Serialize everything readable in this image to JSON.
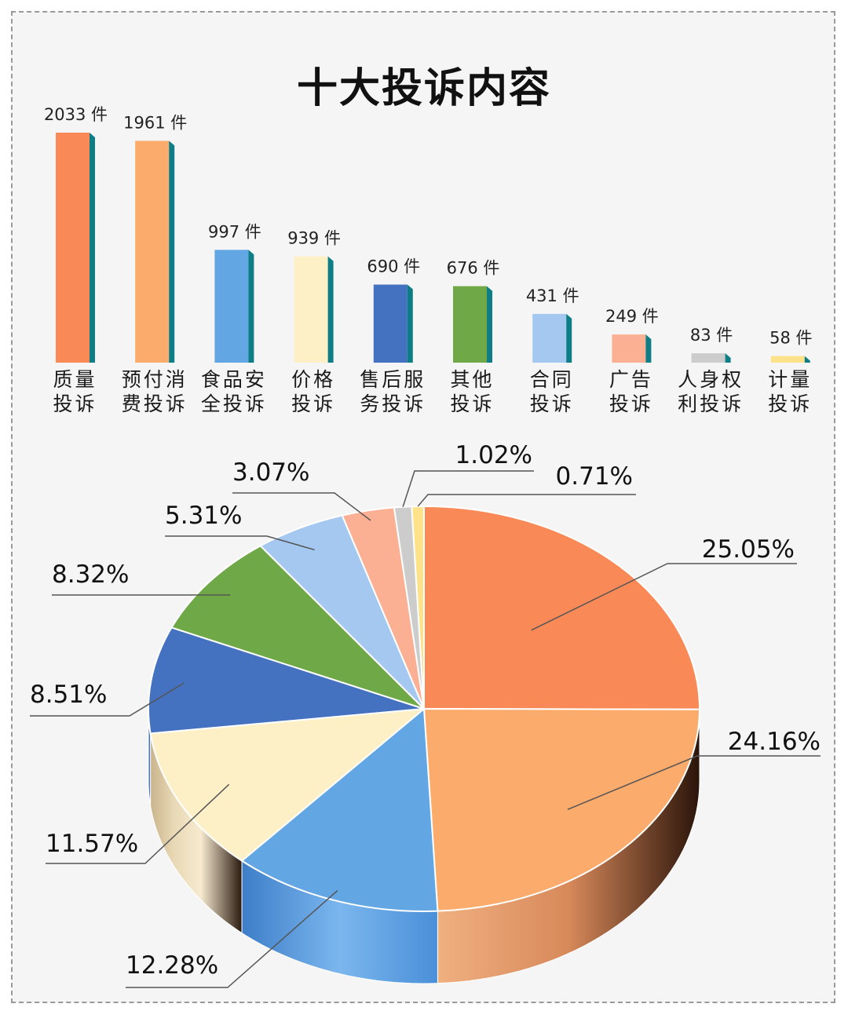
{
  "title": "十大投诉内容",
  "chart_data": [
    {
      "type": "bar",
      "categories": [
        "质量投诉",
        "预付消费投诉",
        "食品安全投诉",
        "价格投诉",
        "售后服务投诉",
        "其他投诉",
        "合同投诉",
        "广告投诉",
        "人身权利投诉",
        "计量投诉"
      ],
      "category_lines": [
        [
          "质量",
          "投诉"
        ],
        [
          "预付消",
          "费投诉"
        ],
        [
          "食品安",
          "全投诉"
        ],
        [
          "价格",
          "投诉"
        ],
        [
          "售后服",
          "务投诉"
        ],
        [
          "其他",
          "投诉"
        ],
        [
          "合同",
          "投诉"
        ],
        [
          "广告",
          "投诉"
        ],
        [
          "人身权",
          "利投诉"
        ],
        [
          "计量",
          "投诉"
        ]
      ],
      "values": [
        2033,
        1961,
        997,
        939,
        690,
        676,
        431,
        249,
        83,
        58
      ],
      "unit": "件",
      "colors": [
        "#f98a57",
        "#fbab6c",
        "#62a6e3",
        "#fdefc6",
        "#4472c0",
        "#6fa846",
        "#a4c8ef",
        "#fbb094",
        "#cccccc",
        "#fde28a"
      ],
      "side_color": "#0e7e86"
    },
    {
      "type": "pie",
      "values": [
        25.05,
        24.16,
        12.28,
        11.57,
        8.51,
        8.32,
        5.31,
        3.07,
        1.02,
        0.71
      ],
      "labels": [
        "25.05%",
        "24.16%",
        "12.28%",
        "11.57%",
        "8.51%",
        "8.32%",
        "5.31%",
        "3.07%",
        "1.02%",
        "0.71%"
      ],
      "colors": [
        "#f98a57",
        "#fbab6c",
        "#62a6e3",
        "#fdefc6",
        "#4472c0",
        "#6fa846",
        "#a4c8ef",
        "#fbb094",
        "#cccccc",
        "#fde28a"
      ]
    }
  ]
}
